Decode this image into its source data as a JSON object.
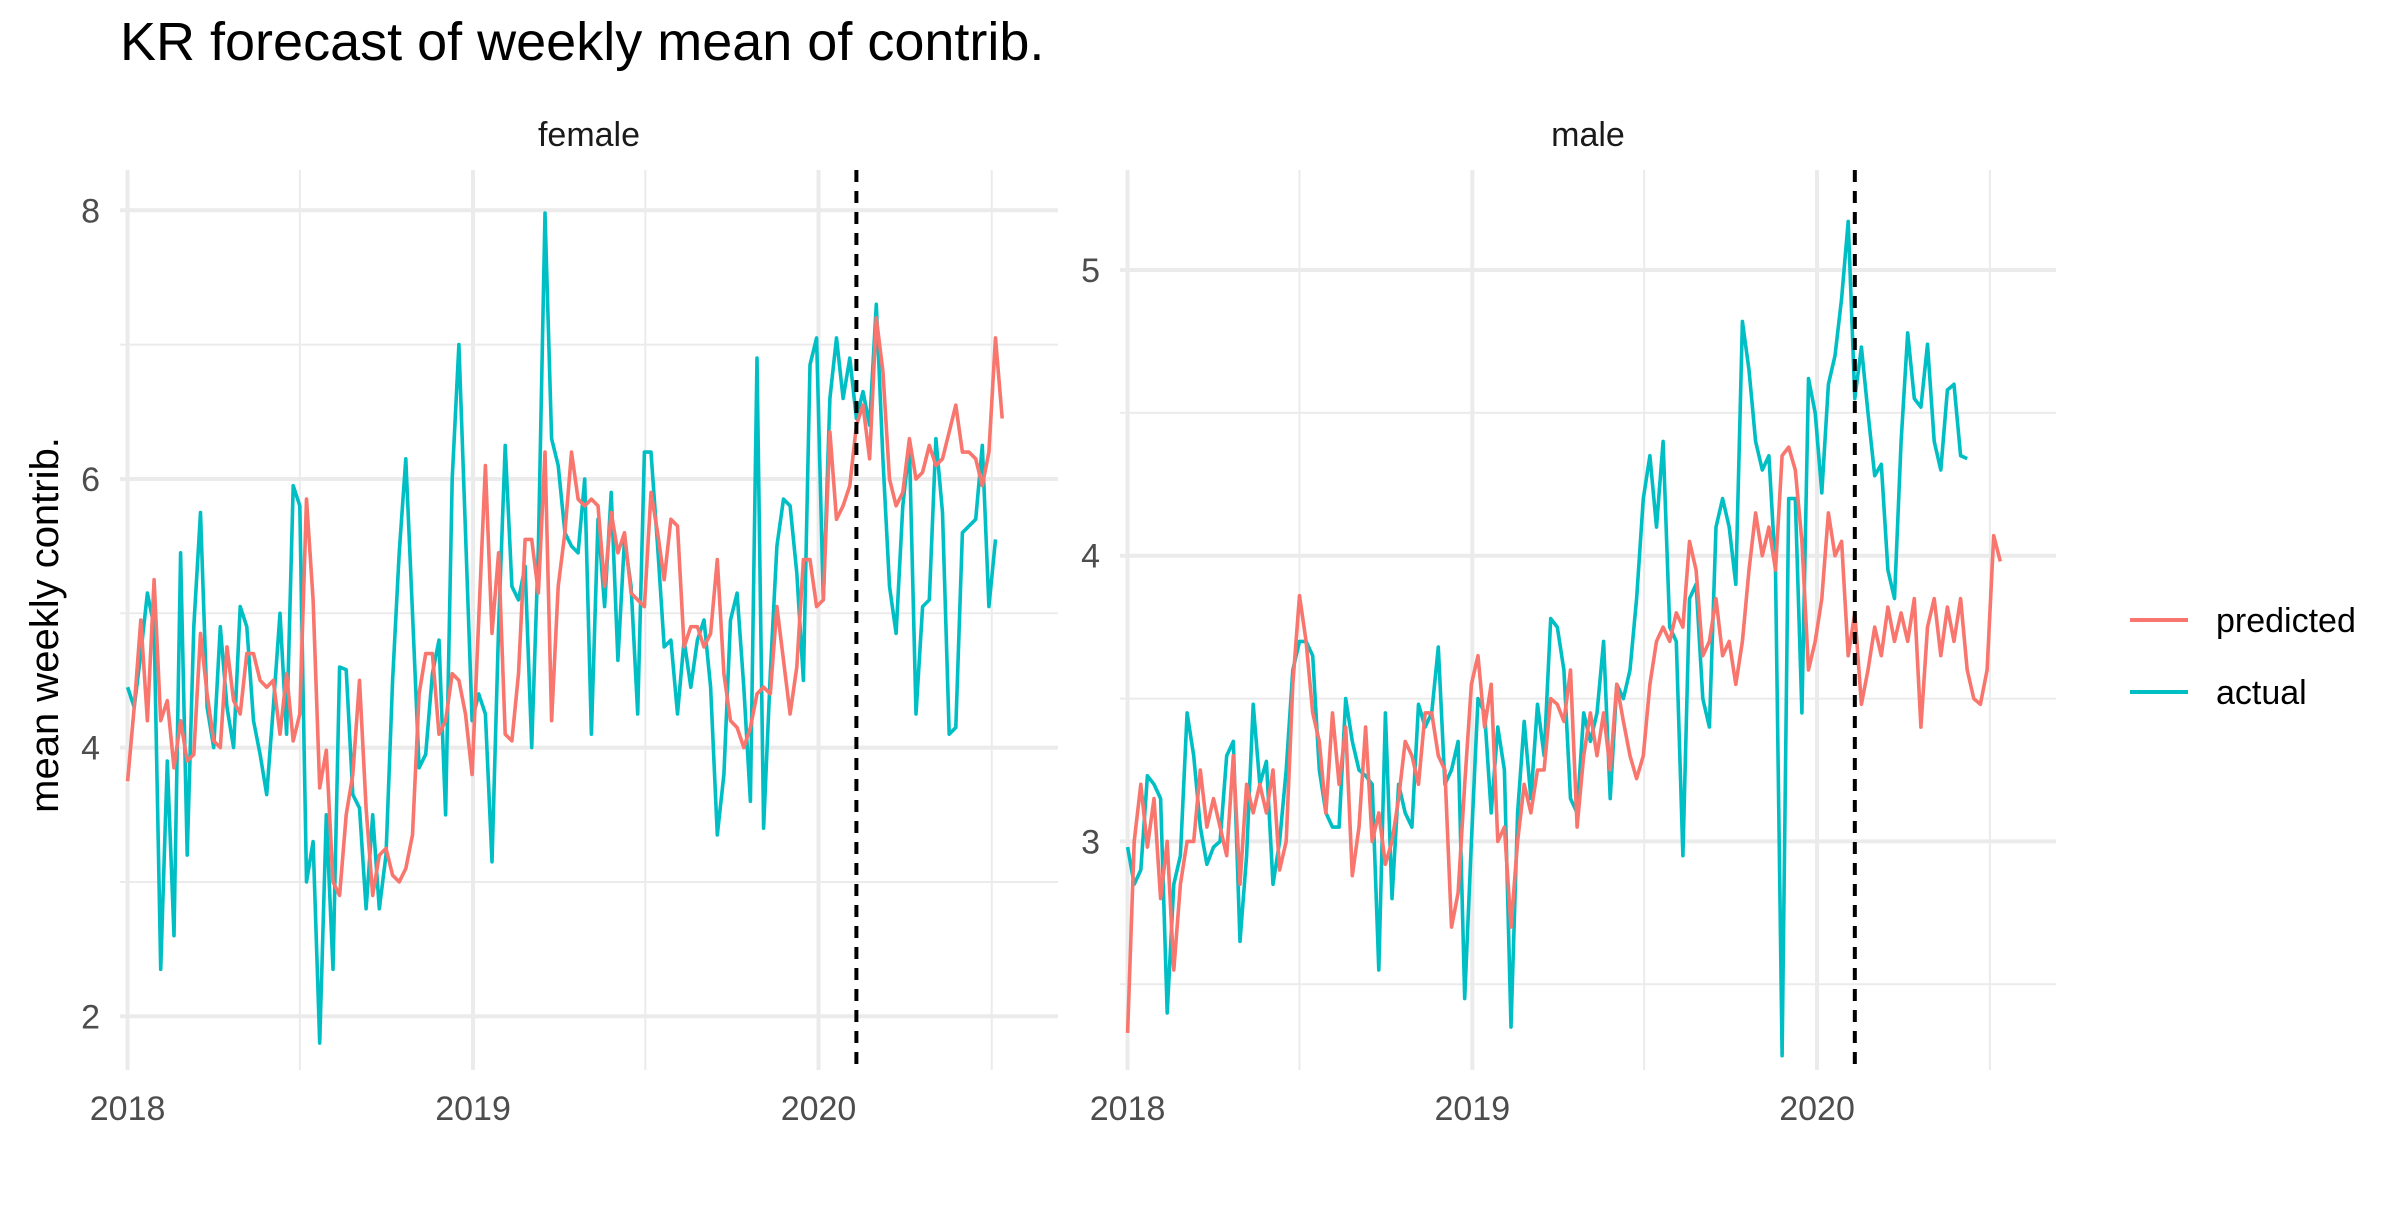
{
  "chart_data": {
    "type": "line",
    "title": "KR forecast of weekly mean of contrib.",
    "ylabel": "mean weekly contrib.",
    "xlabel": "",
    "legend": {
      "placement": "right",
      "entries": [
        {
          "name": "predicted",
          "color": "#F8766D"
        },
        {
          "name": "actual",
          "color": "#00BFC4"
        }
      ]
    },
    "grid": true,
    "forecast_start": "2020-02-10",
    "x_start": "2018-01-01",
    "x_step_days": 7,
    "x_ticks": [
      "2018",
      "2019",
      "2020"
    ],
    "x_range": [
      "2017-12-24",
      "2020-09-10"
    ],
    "panels": [
      {
        "name": "female",
        "ylim": [
          1.6,
          8.3
        ],
        "y_ticks": [
          2,
          4,
          6,
          8
        ],
        "series": [
          {
            "name": "actual",
            "color": "#00BFC4",
            "values": [
              4.45,
              4.3,
              4.7,
              5.15,
              4.9,
              2.35,
              3.9,
              2.6,
              5.45,
              3.2,
              4.9,
              5.75,
              4.3,
              4.0,
              4.9,
              4.3,
              4.0,
              5.05,
              4.9,
              4.2,
              3.95,
              3.65,
              4.3,
              5.0,
              4.1,
              5.95,
              5.8,
              3.0,
              3.3,
              1.8,
              3.5,
              2.35,
              4.6,
              4.58,
              3.65,
              3.55,
              2.8,
              3.5,
              2.8,
              3.2,
              4.5,
              5.45,
              6.15,
              5.0,
              3.85,
              3.95,
              4.55,
              4.8,
              3.5,
              6.0,
              7.0,
              5.6,
              4.2,
              4.4,
              4.25,
              3.15,
              4.9,
              6.25,
              5.2,
              5.1,
              5.35,
              4.0,
              5.5,
              7.98,
              6.3,
              6.1,
              5.6,
              5.5,
              5.45,
              6.0,
              4.1,
              5.7,
              5.05,
              5.9,
              4.65,
              5.55,
              5.2,
              4.25,
              6.2,
              6.2,
              5.5,
              4.75,
              4.8,
              4.25,
              4.8,
              4.45,
              4.8,
              4.95,
              4.45,
              3.35,
              3.8,
              4.95,
              5.15,
              4.45,
              3.6,
              6.9,
              3.4,
              4.55,
              5.5,
              5.85,
              5.8,
              5.3,
              4.5,
              6.85,
              7.05,
              5.1,
              6.6,
              7.05,
              6.6,
              6.9,
              6.45,
              6.65,
              6.4,
              7.3,
              6.15,
              5.2,
              4.85,
              5.8,
              6.25,
              4.25,
              5.05,
              5.1,
              6.3,
              5.75,
              4.1,
              4.15,
              5.6,
              5.65,
              5.7,
              6.25,
              5.05,
              5.55
            ]
          },
          {
            "name": "predicted",
            "color": "#F8766D",
            "values": [
              3.75,
              4.3,
              4.95,
              4.2,
              5.25,
              4.2,
              4.35,
              3.85,
              4.2,
              3.9,
              3.95,
              4.85,
              4.4,
              4.05,
              4.0,
              4.75,
              4.35,
              4.25,
              4.7,
              4.7,
              4.5,
              4.45,
              4.5,
              4.1,
              4.55,
              4.05,
              4.25,
              5.85,
              5.1,
              3.7,
              3.98,
              3.0,
              2.9,
              3.5,
              3.8,
              4.5,
              3.55,
              2.9,
              3.2,
              3.25,
              3.05,
              3.0,
              3.1,
              3.35,
              4.4,
              4.7,
              4.7,
              4.1,
              4.2,
              4.55,
              4.5,
              4.25,
              3.8,
              4.95,
              6.1,
              4.85,
              5.45,
              4.1,
              4.05,
              4.55,
              5.55,
              5.55,
              5.15,
              6.2,
              4.2,
              5.2,
              5.6,
              6.2,
              5.85,
              5.8,
              5.85,
              5.8,
              5.2,
              5.75,
              5.45,
              5.6,
              5.15,
              5.1,
              5.05,
              5.9,
              5.6,
              5.25,
              5.7,
              5.65,
              4.75,
              4.9,
              4.9,
              4.75,
              4.85,
              5.4,
              4.55,
              4.2,
              4.15,
              4.0,
              4.15,
              4.4,
              4.45,
              4.4,
              5.05,
              4.65,
              4.25,
              4.6,
              5.4,
              5.4,
              5.05,
              5.1,
              6.35,
              5.7,
              5.8,
              5.95,
              6.4,
              6.55,
              6.15,
              7.2,
              6.8,
              6.0,
              5.8,
              5.9,
              6.3,
              6.0,
              6.05,
              6.25,
              6.1,
              6.15,
              6.35,
              6.55,
              6.2,
              6.2,
              6.15,
              5.95,
              6.2,
              7.05,
              6.45
            ]
          }
        ]
      },
      {
        "name": "male",
        "ylim": [
          2.2,
          5.35
        ],
        "y_ticks": [
          3,
          4,
          5
        ],
        "series": [
          {
            "name": "actual",
            "color": "#00BFC4",
            "values": [
              2.98,
              2.85,
              2.9,
              3.23,
              3.2,
              3.15,
              2.4,
              2.85,
              2.95,
              3.45,
              3.3,
              3.05,
              2.92,
              2.98,
              3.0,
              3.3,
              3.35,
              2.65,
              2.95,
              3.48,
              3.2,
              3.28,
              2.85,
              3.0,
              3.25,
              3.6,
              3.7,
              3.7,
              3.65,
              3.25,
              3.1,
              3.05,
              3.05,
              3.5,
              3.35,
              3.25,
              3.23,
              3.2,
              2.55,
              3.45,
              2.8,
              3.2,
              3.1,
              3.05,
              3.48,
              3.4,
              3.45,
              3.68,
              3.2,
              3.25,
              3.35,
              2.45,
              3.0,
              3.5,
              3.45,
              3.1,
              3.4,
              3.25,
              2.35,
              3.1,
              3.42,
              3.15,
              3.48,
              3.3,
              3.78,
              3.75,
              3.6,
              3.15,
              3.1,
              3.45,
              3.35,
              3.45,
              3.7,
              3.15,
              3.55,
              3.5,
              3.6,
              3.85,
              4.2,
              4.35,
              4.1,
              4.4,
              3.75,
              3.7,
              2.95,
              3.85,
              3.9,
              3.5,
              3.4,
              4.1,
              4.2,
              4.1,
              3.9,
              4.82,
              4.65,
              4.4,
              4.3,
              4.35,
              3.95,
              2.25,
              4.2,
              4.2,
              3.45,
              4.62,
              4.5,
              4.22,
              4.6,
              4.7,
              4.9,
              5.17,
              4.55,
              4.73,
              4.5,
              4.28,
              4.32,
              3.95,
              3.85,
              4.4,
              4.78,
              4.55,
              4.52,
              4.74,
              4.4,
              4.3,
              4.58,
              4.6,
              4.35,
              4.34
            ]
          },
          {
            "name": "predicted",
            "color": "#F8766D",
            "values": [
              2.33,
              3.0,
              3.2,
              2.98,
              3.15,
              2.8,
              3.0,
              2.55,
              2.85,
              3.0,
              3.0,
              3.25,
              3.05,
              3.15,
              3.05,
              2.95,
              3.3,
              2.85,
              3.2,
              3.1,
              3.2,
              3.1,
              3.25,
              2.9,
              3.0,
              3.55,
              3.86,
              3.7,
              3.45,
              3.35,
              3.1,
              3.45,
              3.2,
              3.4,
              2.88,
              3.05,
              3.4,
              3.0,
              3.1,
              2.92,
              3.0,
              3.15,
              3.35,
              3.3,
              3.2,
              3.45,
              3.45,
              3.3,
              3.25,
              2.7,
              2.82,
              3.2,
              3.55,
              3.65,
              3.4,
              3.55,
              3.0,
              3.05,
              2.7,
              3.0,
              3.2,
              3.1,
              3.25,
              3.25,
              3.5,
              3.48,
              3.42,
              3.6,
              3.05,
              3.3,
              3.45,
              3.3,
              3.45,
              3.25,
              3.55,
              3.42,
              3.3,
              3.22,
              3.3,
              3.55,
              3.7,
              3.75,
              3.7,
              3.8,
              3.75,
              4.05,
              3.95,
              3.65,
              3.7,
              3.85,
              3.65,
              3.7,
              3.55,
              3.7,
              3.95,
              4.15,
              4.0,
              4.1,
              3.95,
              4.35,
              4.38,
              4.3,
              4.05,
              3.6,
              3.7,
              3.85,
              4.15,
              4.0,
              4.05,
              3.65,
              3.8,
              3.48,
              3.6,
              3.75,
              3.65,
              3.82,
              3.7,
              3.8,
              3.7,
              3.85,
              3.4,
              3.75,
              3.85,
              3.65,
              3.82,
              3.7,
              3.85,
              3.6,
              3.5,
              3.48,
              3.6,
              4.07,
              3.98
            ]
          }
        ]
      }
    ]
  }
}
